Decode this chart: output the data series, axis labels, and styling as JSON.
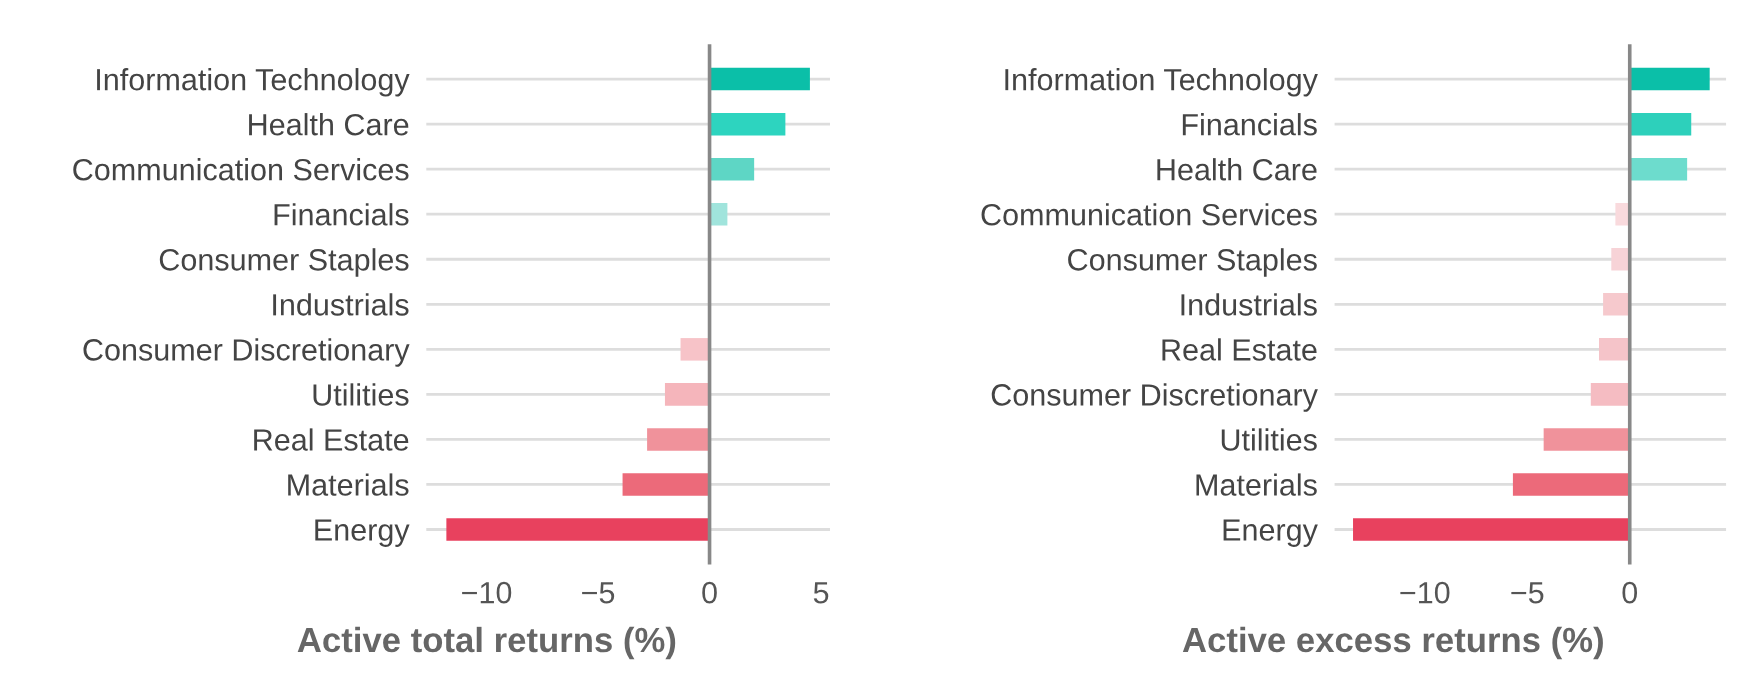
{
  "chart_data": [
    {
      "type": "bar",
      "orientation": "horizontal",
      "xlabel": "Active total returns (%)",
      "grid": "y",
      "legend": false,
      "categories": [
        "Information Technology",
        "Health Care",
        "Communication Services",
        "Financials",
        "Consumer Staples",
        "Industrials",
        "Consumer Discretionary",
        "Utilities",
        "Real Estate",
        "Materials",
        "Energy"
      ],
      "values": [
        4.5,
        3.4,
        2.0,
        0.8,
        0,
        null,
        -1.3,
        -2.0,
        -2.8,
        -3.9,
        -11.8
      ],
      "colors": [
        "#0bbfa8",
        "#2dd4bf",
        "#5ed6c5",
        "#a0e4dc",
        "#f9dadd",
        "#f7d3d7",
        "#f7c3c8",
        "#f5b5bb",
        "#f0929b",
        "#ec6a7a",
        "#e8415e"
      ],
      "xlim": [
        -12.7,
        5.4
      ],
      "xticks": [
        -10,
        -5,
        0,
        5
      ],
      "ref_lines": [
        {
          "axis": "x",
          "value": 0,
          "color": "#888888"
        }
      ]
    },
    {
      "type": "bar",
      "orientation": "horizontal",
      "xlabel": "Active excess returns (%)",
      "grid": "y",
      "legend": false,
      "categories": [
        "Information Technology",
        "Financials",
        "Health Care",
        "Communication Services",
        "Consumer Staples",
        "Industrials",
        "Real Estate",
        "Consumer Discretionary",
        "Utilities",
        "Materials",
        "Energy"
      ],
      "values": [
        3.9,
        3.0,
        2.8,
        -0.7,
        -0.9,
        -1.3,
        -1.5,
        -1.9,
        -4.2,
        -5.7,
        -13.5
      ],
      "colors": [
        "#0bbfa8",
        "#2dd0bb",
        "#6ddccd",
        "#f9dadd",
        "#f7d3d7",
        "#f6c9cd",
        "#f5c4c9",
        "#f5bcc2",
        "#f0929b",
        "#ec6a7a",
        "#e8415e"
      ],
      "xlim": [
        -14.4,
        4.7
      ],
      "xticks": [
        -10,
        -5,
        0
      ],
      "ref_lines": [
        {
          "axis": "x",
          "value": 0,
          "color": "#888888"
        }
      ]
    }
  ]
}
